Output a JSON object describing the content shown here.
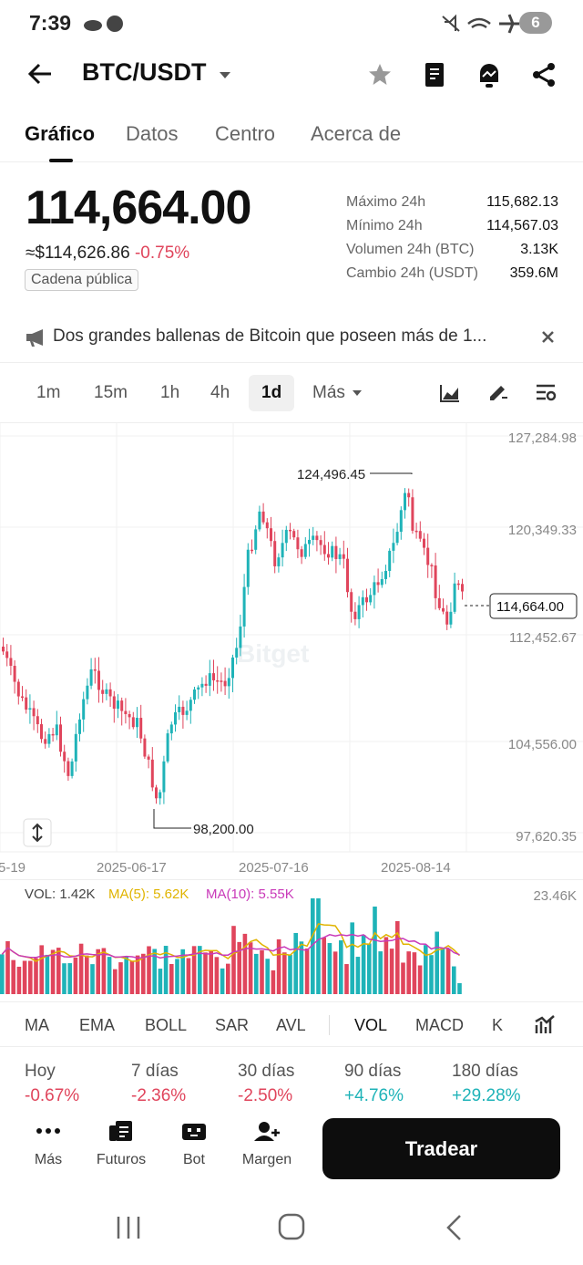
{
  "status": {
    "time": "7:39",
    "battery": "6"
  },
  "header": {
    "pair": "BTC/USDT"
  },
  "tabs": [
    "Gráfico",
    "Datos",
    "Centro",
    "Acerca de"
  ],
  "price": {
    "last": "114,664.00",
    "usd": "≈$114,626.86",
    "change": "-0.75%",
    "chip": "Cadena pública"
  },
  "stats": [
    {
      "label": "Máximo 24h",
      "value": "115,682.13"
    },
    {
      "label": "Mínimo 24h",
      "value": "114,567.03"
    },
    {
      "label": "Volumen 24h (BTC)",
      "value": "3.13K"
    },
    {
      "label": "Cambio 24h (USDT)",
      "value": "359.6M"
    }
  ],
  "news": {
    "text": "Dos grandes ballenas de Bitcoin que poseen más de 1..."
  },
  "intervals": [
    "1m",
    "15m",
    "1h",
    "4h",
    "1d",
    "Más"
  ],
  "chart": {
    "y_ticks": [
      "127,284.98",
      "120,349.33",
      "112,452.67",
      "104,556.00",
      "97,620.35"
    ],
    "x_ticks": [
      "5-19",
      "2025-06-17",
      "2025-07-16",
      "2025-08-14"
    ],
    "high_label": "124,496.45",
    "low_label": "98,200.00",
    "last_label": "114,664.00",
    "watermark": "Bitget",
    "vol_legend": {
      "vol": "VOL: 1.42K",
      "ma5": "MA(5): 5.62K",
      "ma10": "MA(10): 5.55K"
    },
    "vol_max": "23.46K"
  },
  "chart_data": {
    "type": "candlestick",
    "ylim": [
      97620.35,
      127284.98
    ],
    "high": 124496.45,
    "low": 98200.0,
    "last": 114664.0
  },
  "indicators": [
    "MA",
    "EMA",
    "BOLL",
    "SAR",
    "AVL",
    "VOL",
    "MACD",
    "K"
  ],
  "performance": [
    {
      "label": "Hoy",
      "value": "-0.67%"
    },
    {
      "label": "7 días",
      "value": "-2.36%"
    },
    {
      "label": "30 días",
      "value": "-2.50%"
    },
    {
      "label": "90 días",
      "value": "+4.76%"
    },
    {
      "label": "180 días",
      "value": "+29.28%"
    }
  ],
  "bottom": {
    "items": [
      "Más",
      "Futuros",
      "Bot",
      "Margen"
    ],
    "trade": "Tradear"
  },
  "colors": {
    "up": "#1fb3b8",
    "down": "#e0455c"
  }
}
